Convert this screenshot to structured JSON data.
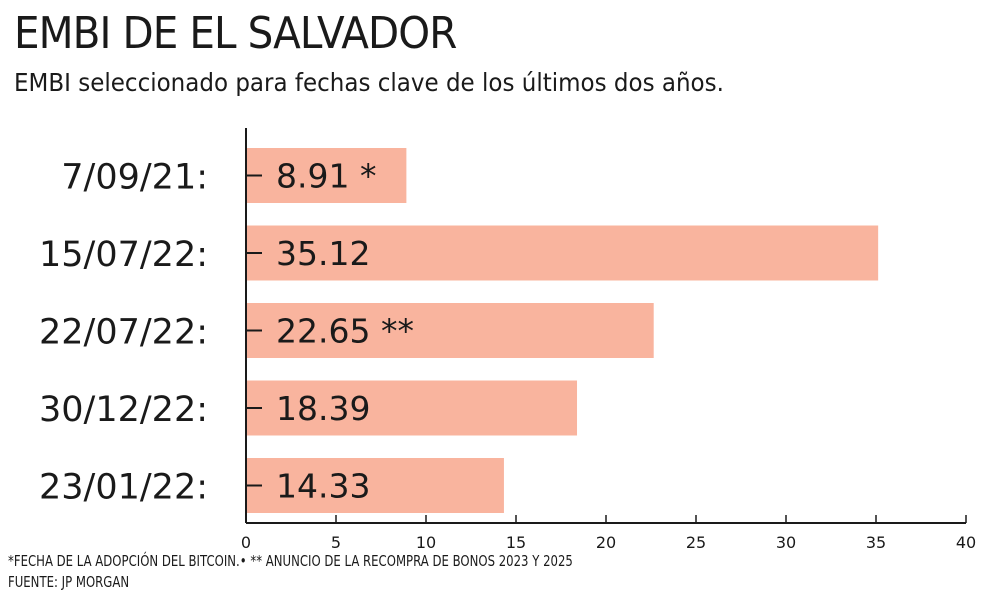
{
  "chart_data": {
    "type": "bar",
    "orientation": "horizontal",
    "title": "EMBI DE EL SALVADOR",
    "subtitle": "EMBI seleccionado para fechas clave de los últimos dos años.",
    "categories": [
      "7/09/21:",
      "15/07/22:",
      "22/07/22:",
      "30/12/22:",
      "23/01/22:"
    ],
    "values": [
      8.91,
      35.12,
      22.65,
      18.39,
      14.33
    ],
    "data_labels": [
      "8.91 *",
      "35.12",
      "22.65 **",
      "18.39",
      "14.33"
    ],
    "xlim": [
      0,
      40
    ],
    "xticks": [
      "0",
      "5",
      "10",
      "15",
      "20",
      "25",
      "30",
      "35",
      "40"
    ],
    "xlabel": "",
    "ylabel": "",
    "grid": false,
    "bar_color": "#f9b49e",
    "footnotes": [
      "*FECHA DE LA ADOPCIÓN DEL BITCOIN.• ** ANUNCIO DE LA RECOMPRA DE BONOS 2023 Y 2025",
      "FUENTE: JP MORGAN"
    ]
  }
}
